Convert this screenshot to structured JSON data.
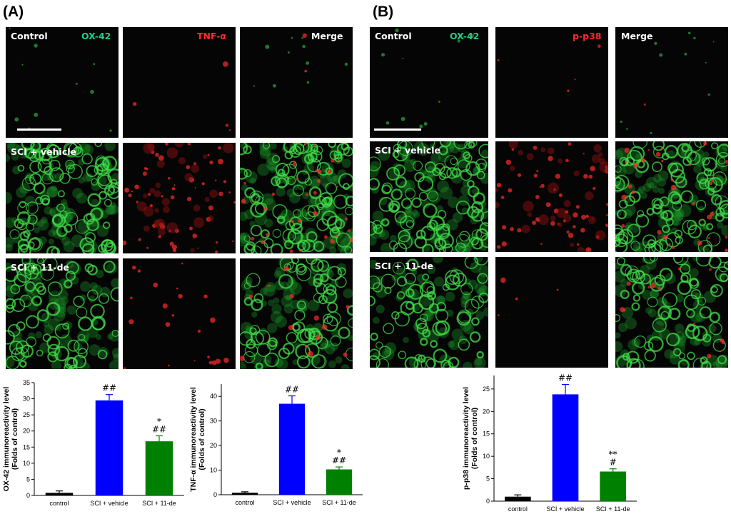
{
  "panel_a": {
    "label": "(A)",
    "rows": [
      {
        "row_label": "Control",
        "channels": [
          "OX-42",
          "TNF-α",
          "Merge"
        ]
      },
      {
        "row_label": "SCI + vehicle",
        "channels": [
          "",
          "",
          ""
        ]
      },
      {
        "row_label": "SCI + 11-de",
        "channels": [
          "",
          "",
          ""
        ]
      }
    ]
  },
  "panel_b": {
    "label": "(B)",
    "rows": [
      {
        "row_label": "Control",
        "channels": [
          "OX-42",
          "p-p38",
          "Merge"
        ]
      },
      {
        "row_label": "SCI + vehicle",
        "channels": [
          "",
          "",
          ""
        ]
      },
      {
        "row_label": "SCI + 11-de",
        "channels": [
          "",
          "",
          ""
        ]
      }
    ]
  },
  "colors": {
    "bar_control": "#000000",
    "bar_vehicle": "#0000ff",
    "bar_11de": "#008000",
    "stain_green": "#1fd089",
    "stain_red": "#ff2b2b"
  },
  "chart_data": [
    {
      "type": "bar",
      "categories": [
        "control",
        "SCI + vehicle",
        "SCI + 11-de"
      ],
      "values": [
        0.8,
        29.5,
        16.8
      ],
      "errors": [
        0.6,
        1.8,
        1.7
      ],
      "significance": [
        "",
        "##",
        "*\n##"
      ],
      "ylabel_lines": [
        "OX-42 immunoreactivity level",
        "(Folds of control)"
      ],
      "ylim": [
        0,
        35
      ],
      "yticks": [
        0,
        5,
        10,
        15,
        20,
        25,
        30,
        35
      ],
      "colors": [
        "#000000",
        "#0000ff",
        "#008000"
      ]
    },
    {
      "type": "bar",
      "categories": [
        "control",
        "SCI + vehicle",
        "SCI + 11-de"
      ],
      "values": [
        0.8,
        37,
        10.3
      ],
      "errors": [
        0.4,
        3.2,
        1.0
      ],
      "significance": [
        "",
        "##",
        "*\n##"
      ],
      "ylabel_lines": [
        "TNF-α immunoreactivity level",
        "(Folds of control)"
      ],
      "ylim": [
        0,
        45
      ],
      "yticks": [
        0,
        10,
        20,
        30,
        40
      ],
      "colors": [
        "#000000",
        "#0000ff",
        "#008000"
      ]
    },
    {
      "type": "bar",
      "categories": [
        "control",
        "SCI + vehicle",
        "SCI + 11-de"
      ],
      "values": [
        1.0,
        23.8,
        6.6
      ],
      "errors": [
        0.4,
        2.2,
        0.6
      ],
      "significance": [
        "",
        "##",
        "**\n#"
      ],
      "ylabel_lines": [
        "p-p38 immunoreactivity level",
        "(Folds of control)"
      ],
      "ylim": [
        0,
        28
      ],
      "yticks": [
        0,
        5,
        10,
        15,
        20,
        25
      ],
      "colors": [
        "#000000",
        "#0000ff",
        "#008000"
      ]
    }
  ]
}
